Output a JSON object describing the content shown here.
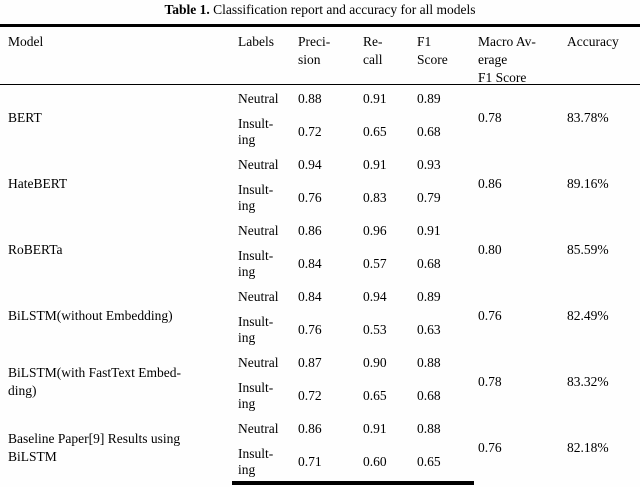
{
  "caption": {
    "label": "Table 1.",
    "text": "Classification report and accuracy for all models"
  },
  "header": {
    "model": "Model",
    "labels": "Labels",
    "precision": [
      "Preci-",
      "sion"
    ],
    "recall": [
      "Re-",
      "call"
    ],
    "f1": [
      "F1",
      "Score"
    ],
    "macro": [
      "Macro Av-",
      "erage",
      "F1 Score"
    ],
    "accuracy": "Accuracy"
  },
  "groups": [
    {
      "model": [
        "BERT"
      ],
      "rows": [
        {
          "label": [
            "Neutral"
          ],
          "precision": "0.88",
          "recall": "0.91",
          "f1": "0.89"
        },
        {
          "label": [
            "Insult-",
            "ing"
          ],
          "precision": "0.72",
          "recall": "0.65",
          "f1": "0.68"
        }
      ],
      "macro": "0.78",
      "accuracy": "83.78%"
    },
    {
      "model": [
        "HateBERT"
      ],
      "rows": [
        {
          "label": [
            "Neutral"
          ],
          "precision": "0.94",
          "recall": "0.91",
          "f1": "0.93"
        },
        {
          "label": [
            "Insult-",
            "ing"
          ],
          "precision": "0.76",
          "recall": "0.83",
          "f1": "0.79"
        }
      ],
      "macro": "0.86",
      "accuracy": "89.16%"
    },
    {
      "model": [
        "RoBERTa"
      ],
      "rows": [
        {
          "label": [
            "Neutral"
          ],
          "precision": "0.86",
          "recall": "0.96",
          "f1": "0.91"
        },
        {
          "label": [
            "Insult-",
            "ing"
          ],
          "precision": "0.84",
          "recall": "0.57",
          "f1": "0.68"
        }
      ],
      "macro": "0.80",
      "accuracy": "85.59%"
    },
    {
      "model": [
        "BiLSTM(without Embedding)"
      ],
      "rows": [
        {
          "label": [
            "Neutral"
          ],
          "precision": "0.84",
          "recall": "0.94",
          "f1": "0.89"
        },
        {
          "label": [
            "Insult-",
            "ing"
          ],
          "precision": "0.76",
          "recall": "0.53",
          "f1": "0.63"
        }
      ],
      "macro": "0.76",
      "accuracy": "82.49%"
    },
    {
      "model": [
        "BiLSTM(with FastText Embed-",
        "ding)"
      ],
      "rows": [
        {
          "label": [
            "Neutral"
          ],
          "precision": "0.87",
          "recall": "0.90",
          "f1": "0.88"
        },
        {
          "label": [
            "Insult-",
            "ing"
          ],
          "precision": "0.72",
          "recall": "0.65",
          "f1": "0.68"
        }
      ],
      "macro": "0.78",
      "accuracy": "83.32%"
    },
    {
      "model": [
        "Baseline Paper[9] Results using",
        "BiLSTM"
      ],
      "rows": [
        {
          "label": [
            "Neutral"
          ],
          "precision": "0.86",
          "recall": "0.91",
          "f1": "0.88"
        },
        {
          "label": [
            "Insult-",
            "ing"
          ],
          "precision": "0.71",
          "recall": "0.60",
          "f1": "0.65"
        }
      ],
      "macro": "0.76",
      "accuracy": "82.18%"
    }
  ]
}
